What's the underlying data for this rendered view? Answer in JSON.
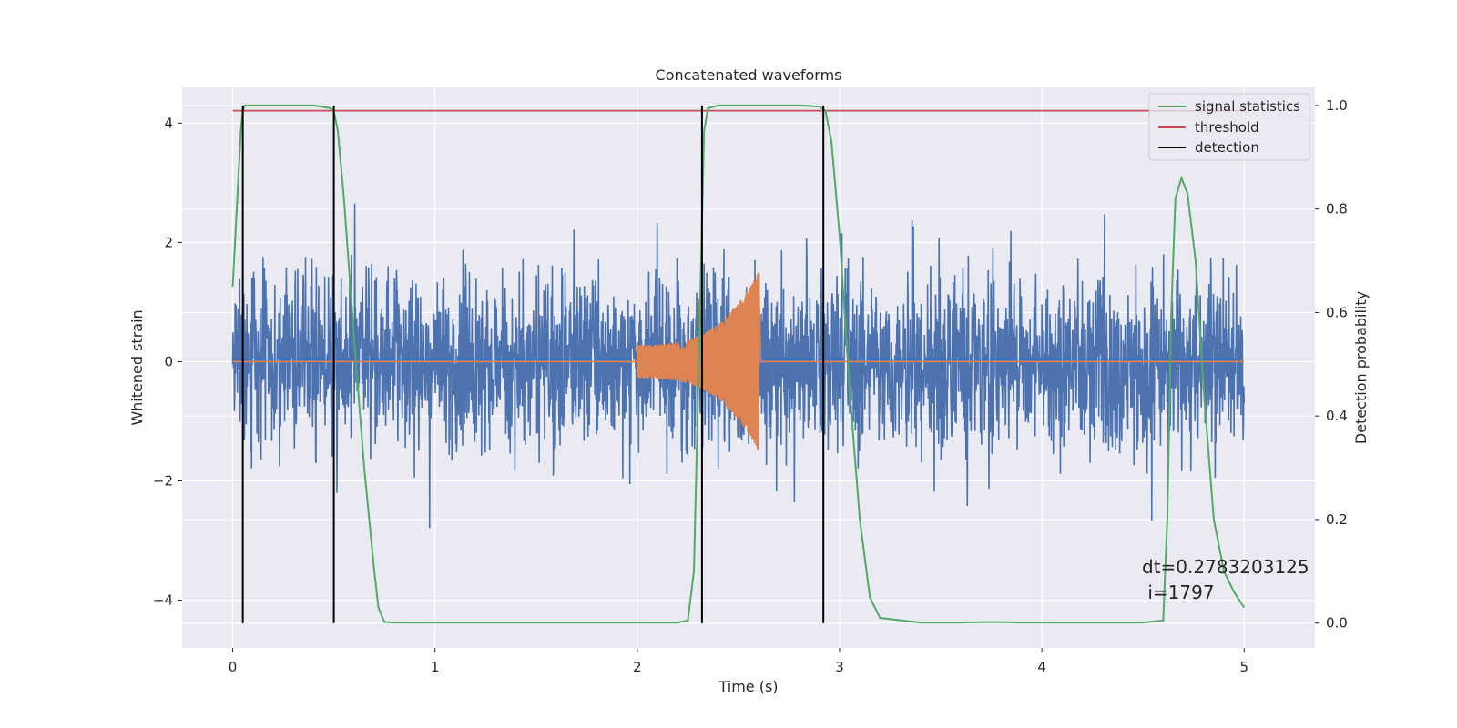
{
  "chart_data": {
    "type": "line",
    "title": "Concatenated waveforms",
    "xlabel": "Time (s)",
    "ylabel": "Whitened strain",
    "ylabel_right": "Detection probability",
    "xlim": [
      -0.25,
      5.35
    ],
    "ylim": [
      -4.8,
      4.6
    ],
    "ylim_right": [
      -0.048,
      1.035
    ],
    "x_ticks": [
      0,
      1,
      2,
      3,
      4,
      5
    ],
    "y_ticks": [
      -4,
      -2,
      0,
      2,
      4
    ],
    "y_ticks_right": [
      0.0,
      0.2,
      0.4,
      0.6,
      0.8,
      1.0
    ],
    "grid": true,
    "legend_position": "top-right",
    "colors": {
      "background": "#eaeaf2",
      "grid": "#ffffff",
      "strain": "#4c72b0",
      "template": "#dd8452",
      "signal_statistics": "#55a868",
      "threshold": "#c44e52",
      "detection": "#000000"
    },
    "series": [
      {
        "name": "signal statistics",
        "axis": "right",
        "x": [
          0.0,
          0.02,
          0.04,
          0.05,
          0.06,
          0.1,
          0.2,
          0.3,
          0.4,
          0.48,
          0.5,
          0.52,
          0.55,
          0.6,
          0.65,
          0.7,
          0.72,
          0.75,
          0.8,
          1.0,
          1.5,
          2.0,
          2.2,
          2.25,
          2.28,
          2.31,
          2.33,
          2.35,
          2.4,
          2.5,
          2.6,
          2.7,
          2.8,
          2.9,
          2.93,
          2.96,
          3.0,
          3.05,
          3.1,
          3.15,
          3.2,
          3.4,
          3.6,
          3.75,
          3.9,
          4.2,
          4.5,
          4.6,
          4.62,
          4.64,
          4.66,
          4.69,
          4.72,
          4.76,
          4.8,
          4.85,
          4.9,
          4.95,
          5.0
        ],
        "y": [
          0.65,
          0.8,
          0.95,
          0.99,
          1.0,
          1.0,
          1.0,
          1.0,
          1.0,
          0.995,
          0.99,
          0.95,
          0.82,
          0.55,
          0.3,
          0.1,
          0.03,
          0.002,
          0.001,
          0.001,
          0.001,
          0.001,
          0.001,
          0.005,
          0.1,
          0.6,
          0.95,
          0.995,
          1.0,
          1.0,
          1.0,
          1.0,
          1.0,
          0.998,
          0.99,
          0.93,
          0.75,
          0.45,
          0.2,
          0.05,
          0.01,
          0.001,
          0.001,
          0.002,
          0.001,
          0.001,
          0.001,
          0.005,
          0.2,
          0.6,
          0.82,
          0.86,
          0.83,
          0.7,
          0.45,
          0.2,
          0.1,
          0.06,
          0.03
        ]
      },
      {
        "name": "threshold",
        "axis": "right",
        "x": [
          0.0,
          5.0
        ],
        "y": [
          0.99,
          0.99
        ]
      },
      {
        "name": "detection",
        "axis": "right",
        "vlines": [
          0.05,
          0.5,
          2.32,
          2.92
        ],
        "ymin": 0.0,
        "ymax": 1.0
      },
      {
        "name": "",
        "axis": "left",
        "x_range": [
          0,
          5
        ],
        "noise_scale": 0.75,
        "y_range": [
          -4.4,
          4.15
        ]
      },
      {
        "name": "",
        "axis": "left",
        "chirp_start": 2.0,
        "chirp_end": 2.6,
        "amp_start": 0.28,
        "amp_peak": 1.5
      }
    ],
    "annotation": {
      "line1": "dt=0.2783203125",
      "line2": " i=1797",
      "x": 4.52,
      "y_right": 0.11
    }
  }
}
